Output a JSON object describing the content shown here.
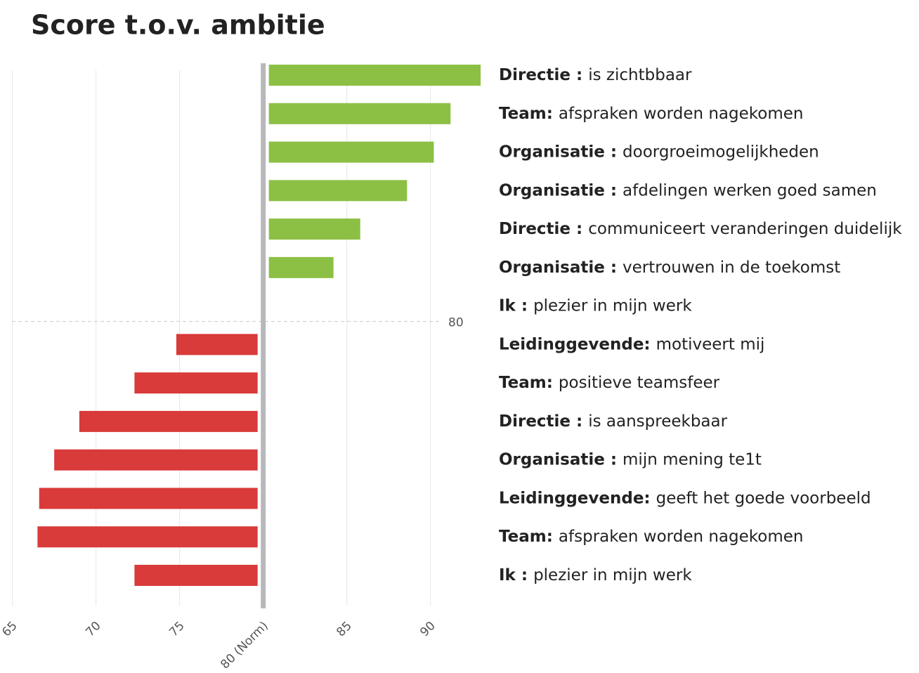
{
  "chart_data": {
    "type": "diverging-bar",
    "title": "Score t.o.v. ambitie",
    "groups": [
      "Directie :",
      "Team:",
      "Organisatie :",
      "Organisatie :",
      "Directie :",
      "Organisatie :",
      "Ik :",
      "Leidinggevende:",
      "Team:",
      "Directie :",
      "Organisatie :",
      "Leidinggevende:",
      "Team:",
      "Ik :"
    ],
    "categories": [
      "is zichtbbaar",
      "afspraken worden nagekomen",
      "doorgroeimogelijkheden",
      "afdelingen werken goed samen",
      "communiceert veranderingen duidelijk",
      "vertrouwen in de toekomst",
      "plezier in mijn werk",
      "motiveert mij",
      "positieve teamsfeer",
      "is aanspreekbaar",
      "mijn mening te1t",
      "geeft het goede voorbeeld",
      "afspraken worden nagekomen",
      "plezier in mijn werk"
    ],
    "values": [
      93,
      91.2,
      90.2,
      88.6,
      85.8,
      84.2,
      80,
      74.8,
      72.3,
      69,
      67.5,
      66.6,
      66.5,
      72.3
    ],
    "norm": 80,
    "norm_label": "80",
    "positive_color": "#8cc044",
    "negative_color": "#d93a3a",
    "xlim": [
      64.3,
      93.5
    ],
    "xticks": [
      65,
      70,
      75,
      {
        "value": 80,
        "label": "80 (Norm)"
      },
      85,
      90
    ],
    "grid": true
  }
}
